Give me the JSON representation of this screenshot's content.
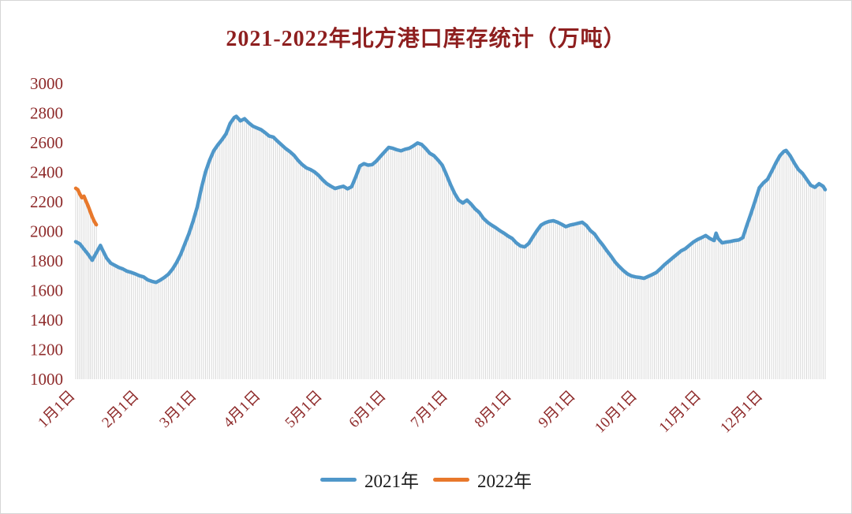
{
  "chart_data": {
    "type": "line",
    "title": "2021-2022年北方港口库存统计（万吨）",
    "ylabel": "",
    "xlabel": "",
    "ylim": [
      1000,
      3000
    ],
    "y_ticks": [
      3000,
      2800,
      2600,
      2400,
      2200,
      2000,
      1800,
      1600,
      1400,
      1200,
      1000
    ],
    "x_max_day": 364,
    "x_ticks": [
      {
        "day": 0,
        "label": "1月1日"
      },
      {
        "day": 31,
        "label": "2月1日"
      },
      {
        "day": 59,
        "label": "3月1日"
      },
      {
        "day": 90,
        "label": "4月1日"
      },
      {
        "day": 120,
        "label": "5月1日"
      },
      {
        "day": 151,
        "label": "6月1日"
      },
      {
        "day": 181,
        "label": "7月1日"
      },
      {
        "day": 212,
        "label": "8月1日"
      },
      {
        "day": 243,
        "label": "9月1日"
      },
      {
        "day": 273,
        "label": "10月1日"
      },
      {
        "day": 304,
        "label": "11月1日"
      },
      {
        "day": 334,
        "label": "12月1日"
      }
    ],
    "grid": false,
    "legend_position": "bottom",
    "stem_color": "#d9d9d9",
    "title_color": "#8e1f1f",
    "tick_color": "#8e2a2a",
    "series": [
      {
        "name": "2021年",
        "color": "#4f97c9",
        "points": [
          [
            0,
            1930
          ],
          [
            2,
            1915
          ],
          [
            4,
            1880
          ],
          [
            6,
            1845
          ],
          [
            8,
            1805
          ],
          [
            10,
            1855
          ],
          [
            12,
            1905
          ],
          [
            13,
            1875
          ],
          [
            15,
            1820
          ],
          [
            17,
            1785
          ],
          [
            19,
            1770
          ],
          [
            21,
            1755
          ],
          [
            23,
            1745
          ],
          [
            25,
            1730
          ],
          [
            27,
            1722
          ],
          [
            29,
            1712
          ],
          [
            31,
            1700
          ],
          [
            33,
            1692
          ],
          [
            35,
            1672
          ],
          [
            37,
            1662
          ],
          [
            39,
            1655
          ],
          [
            41,
            1670
          ],
          [
            43,
            1688
          ],
          [
            45,
            1710
          ],
          [
            47,
            1745
          ],
          [
            49,
            1790
          ],
          [
            51,
            1845
          ],
          [
            53,
            1915
          ],
          [
            55,
            1985
          ],
          [
            57,
            2070
          ],
          [
            59,
            2165
          ],
          [
            61,
            2290
          ],
          [
            63,
            2400
          ],
          [
            65,
            2480
          ],
          [
            67,
            2545
          ],
          [
            69,
            2585
          ],
          [
            71,
            2620
          ],
          [
            73,
            2660
          ],
          [
            75,
            2730
          ],
          [
            77,
            2770
          ],
          [
            78,
            2778
          ],
          [
            80,
            2748
          ],
          [
            82,
            2762
          ],
          [
            84,
            2735
          ],
          [
            86,
            2712
          ],
          [
            88,
            2700
          ],
          [
            90,
            2688
          ],
          [
            92,
            2668
          ],
          [
            94,
            2645
          ],
          [
            96,
            2638
          ],
          [
            98,
            2610
          ],
          [
            100,
            2585
          ],
          [
            102,
            2560
          ],
          [
            104,
            2540
          ],
          [
            106,
            2515
          ],
          [
            108,
            2480
          ],
          [
            110,
            2452
          ],
          [
            112,
            2430
          ],
          [
            114,
            2418
          ],
          [
            116,
            2402
          ],
          [
            118,
            2378
          ],
          [
            120,
            2348
          ],
          [
            122,
            2322
          ],
          [
            124,
            2305
          ],
          [
            126,
            2290
          ],
          [
            128,
            2298
          ],
          [
            130,
            2305
          ],
          [
            132,
            2288
          ],
          [
            134,
            2302
          ],
          [
            136,
            2368
          ],
          [
            138,
            2442
          ],
          [
            140,
            2458
          ],
          [
            142,
            2448
          ],
          [
            144,
            2452
          ],
          [
            146,
            2475
          ],
          [
            148,
            2508
          ],
          [
            150,
            2538
          ],
          [
            152,
            2568
          ],
          [
            154,
            2562
          ],
          [
            156,
            2552
          ],
          [
            158,
            2545
          ],
          [
            160,
            2556
          ],
          [
            162,
            2562
          ],
          [
            164,
            2578
          ],
          [
            166,
            2598
          ],
          [
            168,
            2588
          ],
          [
            170,
            2560
          ],
          [
            172,
            2528
          ],
          [
            174,
            2512
          ],
          [
            176,
            2482
          ],
          [
            178,
            2448
          ],
          [
            180,
            2385
          ],
          [
            182,
            2318
          ],
          [
            184,
            2258
          ],
          [
            186,
            2212
          ],
          [
            188,
            2192
          ],
          [
            190,
            2212
          ],
          [
            192,
            2185
          ],
          [
            194,
            2152
          ],
          [
            196,
            2128
          ],
          [
            198,
            2088
          ],
          [
            200,
            2062
          ],
          [
            202,
            2042
          ],
          [
            204,
            2025
          ],
          [
            206,
            2005
          ],
          [
            208,
            1988
          ],
          [
            210,
            1968
          ],
          [
            212,
            1952
          ],
          [
            214,
            1922
          ],
          [
            216,
            1902
          ],
          [
            218,
            1895
          ],
          [
            220,
            1918
          ],
          [
            222,
            1962
          ],
          [
            224,
            2005
          ],
          [
            226,
            2042
          ],
          [
            228,
            2058
          ],
          [
            230,
            2068
          ],
          [
            232,
            2072
          ],
          [
            234,
            2062
          ],
          [
            236,
            2048
          ],
          [
            238,
            2032
          ],
          [
            240,
            2042
          ],
          [
            242,
            2048
          ],
          [
            244,
            2055
          ],
          [
            246,
            2062
          ],
          [
            248,
            2040
          ],
          [
            250,
            2005
          ],
          [
            252,
            1982
          ],
          [
            254,
            1942
          ],
          [
            256,
            1908
          ],
          [
            258,
            1868
          ],
          [
            260,
            1832
          ],
          [
            262,
            1792
          ],
          [
            264,
            1762
          ],
          [
            266,
            1735
          ],
          [
            268,
            1712
          ],
          [
            270,
            1698
          ],
          [
            272,
            1692
          ],
          [
            274,
            1688
          ],
          [
            276,
            1682
          ],
          [
            278,
            1695
          ],
          [
            280,
            1708
          ],
          [
            282,
            1722
          ],
          [
            284,
            1748
          ],
          [
            286,
            1775
          ],
          [
            288,
            1798
          ],
          [
            290,
            1822
          ],
          [
            292,
            1845
          ],
          [
            294,
            1868
          ],
          [
            296,
            1882
          ],
          [
            298,
            1905
          ],
          [
            300,
            1928
          ],
          [
            302,
            1945
          ],
          [
            304,
            1958
          ],
          [
            306,
            1972
          ],
          [
            308,
            1952
          ],
          [
            310,
            1938
          ],
          [
            311,
            1988
          ],
          [
            312,
            1952
          ],
          [
            314,
            1922
          ],
          [
            316,
            1928
          ],
          [
            318,
            1932
          ],
          [
            320,
            1938
          ],
          [
            322,
            1942
          ],
          [
            324,
            1958
          ],
          [
            326,
            2042
          ],
          [
            328,
            2122
          ],
          [
            330,
            2208
          ],
          [
            332,
            2295
          ],
          [
            334,
            2328
          ],
          [
            336,
            2352
          ],
          [
            338,
            2405
          ],
          [
            340,
            2462
          ],
          [
            342,
            2512
          ],
          [
            344,
            2542
          ],
          [
            345,
            2548
          ],
          [
            347,
            2512
          ],
          [
            349,
            2462
          ],
          [
            351,
            2418
          ],
          [
            353,
            2392
          ],
          [
            355,
            2352
          ],
          [
            357,
            2312
          ],
          [
            359,
            2298
          ],
          [
            361,
            2322
          ],
          [
            363,
            2305
          ],
          [
            364,
            2282
          ]
        ]
      },
      {
        "name": "2022年",
        "color": "#e8782b",
        "points": [
          [
            0,
            2292
          ],
          [
            1,
            2282
          ],
          [
            2,
            2252
          ],
          [
            3,
            2228
          ],
          [
            4,
            2238
          ],
          [
            5,
            2205
          ],
          [
            6,
            2172
          ],
          [
            7,
            2135
          ],
          [
            8,
            2098
          ],
          [
            9,
            2068
          ],
          [
            10,
            2045
          ]
        ]
      }
    ]
  }
}
